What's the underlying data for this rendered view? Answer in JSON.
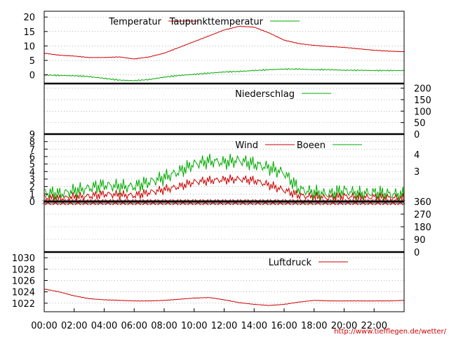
{
  "chart_data": [
    {
      "type": "line",
      "x_ticks": [
        "00:00",
        "02:00",
        "04:00",
        "06:00",
        "08:00",
        "10:00",
        "12:00",
        "14:00",
        "16:00",
        "18:00",
        "20:00",
        "22:00"
      ],
      "ylim": [
        -3,
        22
      ],
      "y_ticks": [
        "0",
        "5",
        "10",
        "15",
        "20"
      ],
      "grid": true,
      "legend_position": "top-right",
      "series": [
        {
          "name": "Temperatur",
          "color": "#cc0000",
          "x": [
            0,
            1,
            2,
            3,
            4,
            5,
            6,
            7,
            8,
            9,
            10,
            11,
            12,
            13,
            14,
            15,
            16,
            17,
            18,
            19,
            20,
            21,
            22,
            23,
            24
          ],
          "values": [
            7.5,
            6.8,
            6.5,
            6.0,
            6.0,
            6.2,
            5.5,
            6.2,
            7.5,
            9.5,
            11.5,
            13.5,
            15.5,
            16.8,
            16.5,
            14.5,
            12.0,
            10.8,
            10.2,
            9.8,
            9.5,
            9.0,
            8.5,
            8.2,
            8.0
          ]
        },
        {
          "name": "Taupunkttemperatur",
          "color": "#00aa00",
          "x": [
            0,
            1,
            2,
            3,
            4,
            5,
            6,
            7,
            8,
            9,
            10,
            11,
            12,
            13,
            14,
            15,
            16,
            17,
            18,
            19,
            20,
            21,
            22,
            23,
            24
          ],
          "values": [
            0,
            -0.2,
            -0.3,
            -0.6,
            -1.2,
            -1.8,
            -2.0,
            -1.6,
            -0.8,
            -0.2,
            0.2,
            0.6,
            1.0,
            1.2,
            1.5,
            1.8,
            2.0,
            2.0,
            1.8,
            1.8,
            1.6,
            1.6,
            1.5,
            1.5,
            1.5
          ]
        }
      ]
    },
    {
      "type": "line",
      "ylim": [
        0,
        220
      ],
      "y_ticks": [
        "0",
        "50",
        "100",
        "150",
        "200"
      ],
      "legend_position": "top-right",
      "series": [
        {
          "name": "Niederschlag",
          "color": "#00aa00",
          "x": [
            0,
            24
          ],
          "values": [
            0,
            0
          ]
        }
      ]
    },
    {
      "type": "line",
      "ylim": [
        0,
        9
      ],
      "y_ticks_left": [
        "0",
        "1",
        "2",
        "3",
        "4",
        "5",
        "6",
        "7",
        "8",
        "9"
      ],
      "y_ticks_right": [
        "3",
        "4"
      ],
      "legend_position": "top-right",
      "series": [
        {
          "name": "Wind",
          "color": "#cc0000",
          "x": [
            0,
            1,
            2,
            3,
            4,
            5,
            6,
            7,
            8,
            9,
            10,
            11,
            12,
            13,
            14,
            15,
            16,
            17,
            18,
            19,
            20,
            21,
            22,
            23,
            24
          ],
          "values": [
            0.5,
            0.4,
            0.6,
            0.7,
            1.0,
            0.9,
            0.8,
            1.2,
            1.6,
            2.0,
            2.6,
            2.8,
            2.9,
            3.0,
            2.8,
            2.2,
            1.5,
            0.8,
            0.6,
            0.5,
            0.7,
            0.5,
            0.6,
            0.5,
            0.4
          ]
        },
        {
          "name": "Boeen",
          "color": "#00aa00",
          "x": [
            0,
            1,
            2,
            3,
            4,
            5,
            6,
            7,
            8,
            9,
            10,
            11,
            12,
            13,
            14,
            15,
            16,
            17,
            18,
            19,
            20,
            21,
            22,
            23,
            24
          ],
          "values": [
            1.2,
            1.0,
            1.4,
            1.8,
            2.2,
            2.0,
            2.0,
            2.6,
            3.2,
            4.0,
            5.0,
            5.4,
            5.2,
            5.5,
            5.0,
            4.5,
            3.8,
            1.6,
            1.2,
            1.0,
            1.5,
            1.0,
            1.2,
            1.0,
            0.9
          ]
        }
      ]
    },
    {
      "type": "scatter",
      "ylim": [
        0,
        360
      ],
      "y_ticks": [
        "0",
        "90",
        "180",
        "270",
        "360"
      ],
      "series": [
        {
          "color": "#cc0000",
          "x": [
            0.25,
            0.75,
            1.25,
            1.75,
            2.25,
            2.75,
            3.25,
            3.75,
            4.25,
            4.75,
            5.25,
            5.75,
            6.25,
            6.75,
            7.25,
            7.75,
            8.25,
            8.75,
            9.25,
            9.75,
            10.25,
            10.75,
            11.25,
            11.75,
            12.25,
            12.75,
            13.25,
            13.75,
            14.25,
            14.75,
            15.25,
            15.75,
            16.25,
            16.75,
            17.25,
            17.75,
            18.25,
            18.75,
            19.25,
            19.75,
            20.25,
            20.75,
            21.25,
            21.75,
            22.25,
            22.75,
            23.25,
            23.75
          ],
          "values": [
            355,
            355,
            355,
            355,
            355,
            355,
            355,
            355,
            355,
            355,
            355,
            355,
            355,
            355,
            355,
            355,
            355,
            355,
            355,
            355,
            355,
            355,
            355,
            355,
            355,
            355,
            355,
            355,
            355,
            355,
            355,
            355,
            355,
            355,
            355,
            355,
            355,
            355,
            355,
            355,
            355,
            355,
            355,
            355,
            355,
            355,
            355,
            355
          ]
        }
      ]
    },
    {
      "type": "line",
      "ylim": [
        1020.5,
        1031
      ],
      "y_ticks": [
        "1022",
        "1024",
        "1026",
        "1028",
        "1030"
      ],
      "legend_position": "top-right",
      "series": [
        {
          "name": "Luftdruck",
          "color": "#cc0000",
          "x": [
            0,
            1,
            2,
            3,
            4,
            5,
            6,
            7,
            8,
            9,
            10,
            11,
            12,
            13,
            14,
            15,
            16,
            17,
            18,
            19,
            20,
            21,
            22,
            23,
            24
          ],
          "values": [
            1024.5,
            1024.0,
            1023.3,
            1022.8,
            1022.6,
            1022.5,
            1022.4,
            1022.4,
            1022.5,
            1022.7,
            1022.9,
            1023.0,
            1022.6,
            1022.1,
            1021.8,
            1021.6,
            1021.8,
            1022.2,
            1022.5,
            1022.4,
            1022.4,
            1022.4,
            1022.4,
            1022.4,
            1022.5
          ]
        }
      ]
    }
  ],
  "footer": {
    "url": "http://www.tiefflegen.de/wetter/"
  }
}
